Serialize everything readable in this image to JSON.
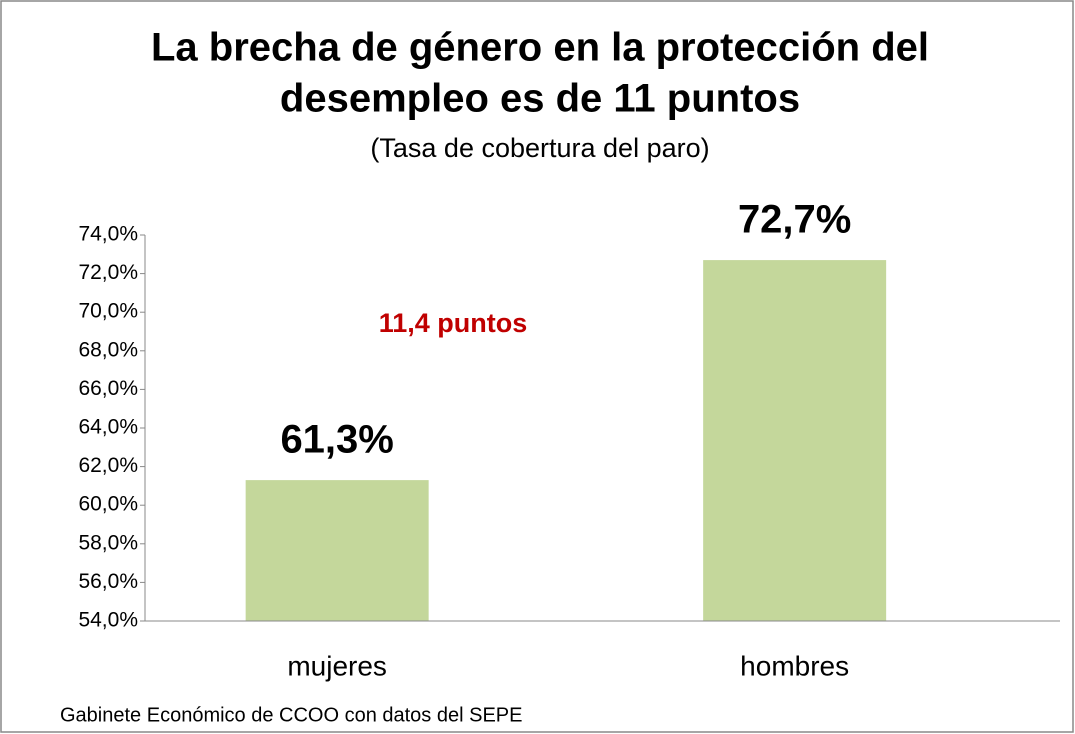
{
  "chart_data": {
    "type": "bar",
    "title": [
      "La brecha de género en la protección del",
      "desempleo es de 11 puntos"
    ],
    "subtitle": "(Tasa de cobertura del paro)",
    "annotation": "11,4 puntos",
    "annotation_color": "#c00000",
    "source": "Gabinete Económico de CCOO con datos del SEPE",
    "categories": [
      "mujeres",
      "hombres"
    ],
    "values": [
      61.3,
      72.7
    ],
    "value_labels": [
      "61,3%",
      "72,7%"
    ],
    "color": "#c4d79b",
    "ylim": [
      54,
      74
    ],
    "yticks": [
      {
        "value": 54,
        "label": "54,0%"
      },
      {
        "value": 56,
        "label": "56,0%"
      },
      {
        "value": 58,
        "label": "58,0%"
      },
      {
        "value": 60,
        "label": "60,0%"
      },
      {
        "value": 62,
        "label": "62,0%"
      },
      {
        "value": 64,
        "label": "64,0%"
      },
      {
        "value": 66,
        "label": "66,0%"
      },
      {
        "value": 68,
        "label": "68,0%"
      },
      {
        "value": 70,
        "label": "70,0%"
      },
      {
        "value": 72,
        "label": "72,0%"
      },
      {
        "value": 74,
        "label": "74,0%"
      }
    ],
    "grid": false
  }
}
